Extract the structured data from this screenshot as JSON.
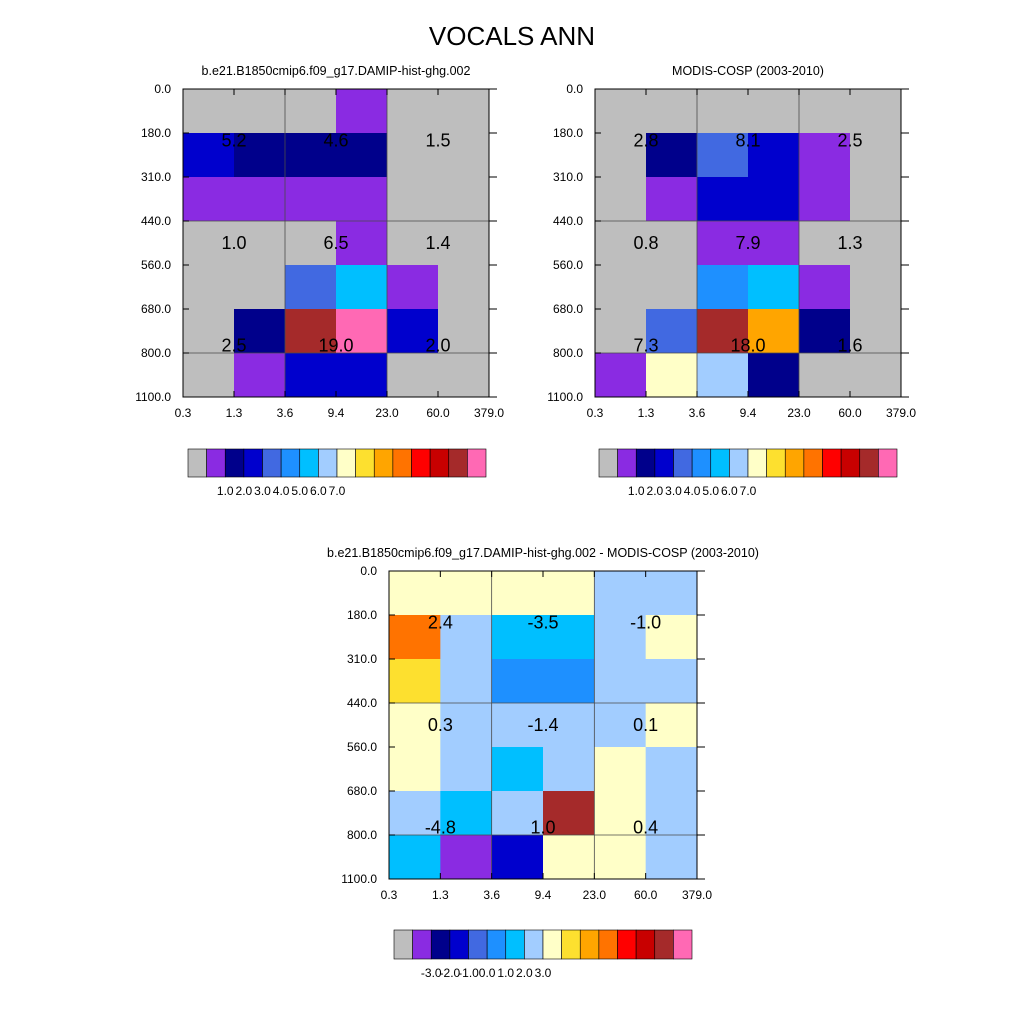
{
  "figure": {
    "title": "VOCALS ANN"
  },
  "colors": {
    "base_palette": [
      "#bebebe",
      "#8a2be2",
      "#00008b",
      "#0000cd",
      "#4169e1",
      "#1e90ff",
      "#00bfff",
      "#a2cdff",
      "#ffffc8",
      "#fde02f",
      "#ffa500",
      "#ff7300",
      "#ff0000",
      "#c80000",
      "#a52a2a",
      "#ff69b4"
    ],
    "diff_palette": [
      "#bebebe",
      "#8a2be2",
      "#00008b",
      "#0000cd",
      "#4169e1",
      "#1e90ff",
      "#00bfff",
      "#a2cdff",
      "#ffffc8",
      "#fde02f",
      "#ffa500",
      "#ff7300",
      "#ff0000",
      "#c80000",
      "#a52a2a",
      "#ff69b4"
    ]
  },
  "chart_data": [
    {
      "type": "heatmap",
      "title": "b.e21.B1850cmip6.f09_g17.DAMIP-hist-ghg.002",
      "x_ticks": [
        "0.3",
        "1.3",
        "3.6",
        "9.4",
        "23.0",
        "60.0",
        "379.0"
      ],
      "y_ticks": [
        "0.0",
        "180.0",
        "310.0",
        "440.0",
        "560.0",
        "680.0",
        "800.0",
        "1100.0"
      ],
      "cells": [
        [
          0,
          0,
          0,
          1,
          0,
          0
        ],
        [
          3,
          2,
          2,
          2,
          0,
          0
        ],
        [
          1,
          1,
          1,
          1,
          0,
          0
        ],
        [
          0,
          0,
          0,
          1,
          0,
          0
        ],
        [
          0,
          0,
          4,
          6,
          1,
          0
        ],
        [
          0,
          2,
          14,
          15,
          3,
          0
        ],
        [
          0,
          1,
          3,
          3,
          0,
          0
        ]
      ],
      "labels": [
        {
          "col": 0,
          "row": 0,
          "text": "5.2"
        },
        {
          "col": 1,
          "row": 0,
          "text": "4.6"
        },
        {
          "col": 2,
          "row": 0,
          "text": "1.5"
        },
        {
          "col": 0,
          "row": 1,
          "text": "1.0"
        },
        {
          "col": 1,
          "row": 1,
          "text": "6.5"
        },
        {
          "col": 2,
          "row": 1,
          "text": "1.4"
        },
        {
          "col": 0,
          "row": 2,
          "text": "2.5"
        },
        {
          "col": 1,
          "row": 2,
          "text": "19.0"
        },
        {
          "col": 2,
          "row": 2,
          "text": "2.0"
        }
      ],
      "colorbar_labels": [
        "1.0",
        "2.0",
        "3.0",
        "4.0",
        "5.0",
        "6.0",
        "7.0"
      ],
      "palette": "base_palette"
    },
    {
      "type": "heatmap",
      "title": "MODIS-COSP (2003-2010)",
      "x_ticks": [
        "0.3",
        "1.3",
        "3.6",
        "9.4",
        "23.0",
        "60.0",
        "379.0"
      ],
      "y_ticks": [
        "0.0",
        "180.0",
        "310.0",
        "440.0",
        "560.0",
        "680.0",
        "800.0",
        "1100.0"
      ],
      "cells": [
        [
          0,
          0,
          0,
          0,
          0,
          0
        ],
        [
          0,
          2,
          4,
          3,
          1,
          0
        ],
        [
          0,
          1,
          3,
          3,
          1,
          0
        ],
        [
          0,
          0,
          1,
          1,
          0,
          0
        ],
        [
          0,
          0,
          5,
          6,
          1,
          0
        ],
        [
          0,
          4,
          14,
          10,
          2,
          0
        ],
        [
          1,
          8,
          7,
          2,
          0,
          0
        ]
      ],
      "labels": [
        {
          "col": 0,
          "row": 0,
          "text": "2.8"
        },
        {
          "col": 1,
          "row": 0,
          "text": "8.1"
        },
        {
          "col": 2,
          "row": 0,
          "text": "2.5"
        },
        {
          "col": 0,
          "row": 1,
          "text": "0.8"
        },
        {
          "col": 1,
          "row": 1,
          "text": "7.9"
        },
        {
          "col": 2,
          "row": 1,
          "text": "1.3"
        },
        {
          "col": 0,
          "row": 2,
          "text": "7.3"
        },
        {
          "col": 1,
          "row": 2,
          "text": "18.0"
        },
        {
          "col": 2,
          "row": 2,
          "text": "1.6"
        }
      ],
      "colorbar_labels": [
        "1.0",
        "2.0",
        "3.0",
        "4.0",
        "5.0",
        "6.0",
        "7.0"
      ],
      "palette": "base_palette"
    },
    {
      "type": "heatmap",
      "title": "b.e21.B1850cmip6.f09_g17.DAMIP-hist-ghg.002 - MODIS-COSP (2003-2010)",
      "x_ticks": [
        "0.3",
        "1.3",
        "3.6",
        "9.4",
        "23.0",
        "60.0",
        "379.0"
      ],
      "y_ticks": [
        "0.0",
        "180.0",
        "310.0",
        "440.0",
        "560.0",
        "680.0",
        "800.0",
        "1100.0"
      ],
      "cells": [
        [
          8,
          8,
          8,
          8,
          7,
          7
        ],
        [
          11,
          7,
          6,
          6,
          7,
          8
        ],
        [
          9,
          7,
          5,
          5,
          7,
          7
        ],
        [
          8,
          7,
          7,
          7,
          7,
          8
        ],
        [
          8,
          7,
          6,
          7,
          8,
          7
        ],
        [
          7,
          6,
          7,
          14,
          8,
          7
        ],
        [
          6,
          1,
          3,
          8,
          8,
          7
        ]
      ],
      "labels": [
        {
          "col": 0,
          "row": 0,
          "text": "2.4"
        },
        {
          "col": 1,
          "row": 0,
          "text": "-3.5"
        },
        {
          "col": 2,
          "row": 0,
          "text": "-1.0"
        },
        {
          "col": 0,
          "row": 1,
          "text": "0.3"
        },
        {
          "col": 1,
          "row": 1,
          "text": "-1.4"
        },
        {
          "col": 2,
          "row": 1,
          "text": "0.1"
        },
        {
          "col": 0,
          "row": 2,
          "text": "-4.8"
        },
        {
          "col": 1,
          "row": 2,
          "text": "1.0"
        },
        {
          "col": 2,
          "row": 2,
          "text": "0.4"
        }
      ],
      "colorbar_labels": [
        "-3.0",
        "-2.0",
        "-1.0",
        "0.0",
        "1.0",
        "2.0",
        "3.0"
      ],
      "palette": "diff_palette"
    }
  ]
}
